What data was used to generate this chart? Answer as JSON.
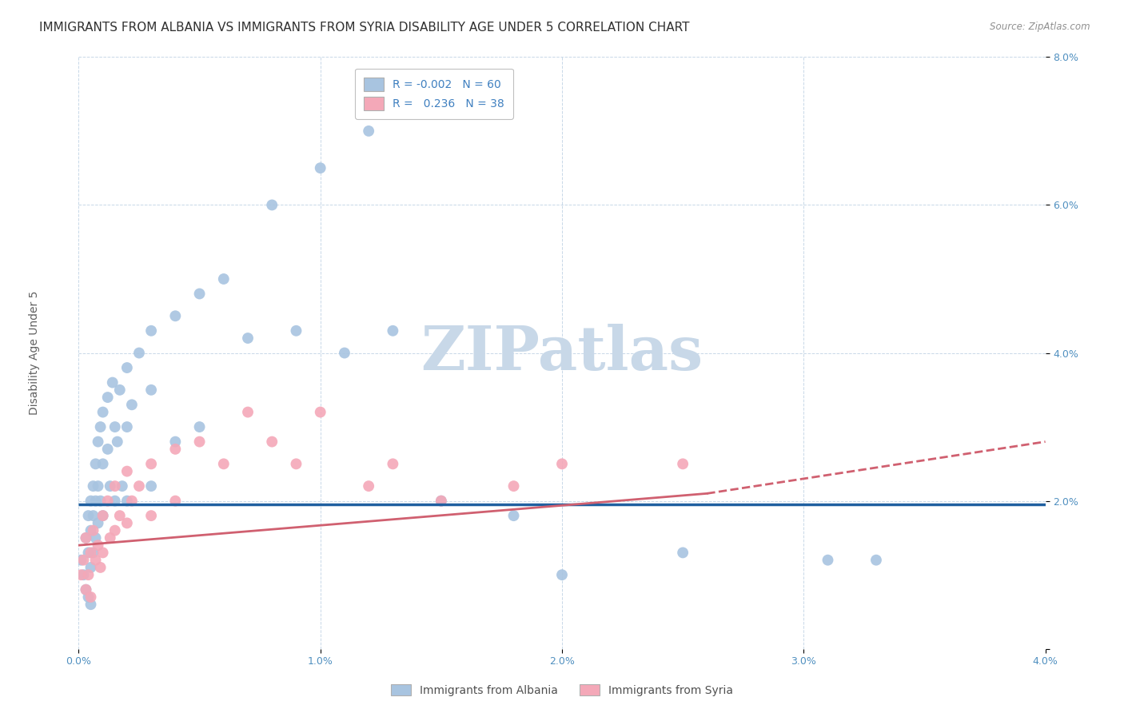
{
  "title": "IMMIGRANTS FROM ALBANIA VS IMMIGRANTS FROM SYRIA DISABILITY AGE UNDER 5 CORRELATION CHART",
  "source": "Source: ZipAtlas.com",
  "ylabel": "Disability Age Under 5",
  "xlabel_albania": "Immigrants from Albania",
  "xlabel_syria": "Immigrants from Syria",
  "xlim": [
    0.0,
    0.04
  ],
  "ylim": [
    0.0,
    0.08
  ],
  "xticks": [
    0.0,
    0.01,
    0.02,
    0.03,
    0.04
  ],
  "yticks": [
    0.0,
    0.02,
    0.04,
    0.06,
    0.08
  ],
  "xtick_labels": [
    "0.0%",
    "1.0%",
    "2.0%",
    "3.0%",
    "4.0%"
  ],
  "ytick_labels": [
    "",
    "2.0%",
    "4.0%",
    "6.0%",
    "8.0%"
  ],
  "albania_R": "-0.002",
  "albania_N": "60",
  "syria_R": "0.236",
  "syria_N": "38",
  "albania_color": "#a8c4e0",
  "syria_color": "#f4a8b8",
  "albania_line_color": "#2060a0",
  "syria_line_color": "#d06070",
  "title_fontsize": 11,
  "axis_label_fontsize": 10,
  "tick_fontsize": 9,
  "legend_fontsize": 10,
  "watermark": "ZIPatlas",
  "watermark_color": "#c8d8e8",
  "albania_line_y0": 0.0195,
  "albania_line_y1": 0.0195,
  "syria_line_x0": 0.0,
  "syria_line_x1": 0.026,
  "syria_line_x2": 0.04,
  "syria_line_y0": 0.014,
  "syria_line_y1": 0.021,
  "syria_line_y2": 0.028,
  "albania_x": [
    0.0001,
    0.0002,
    0.0003,
    0.0003,
    0.0004,
    0.0004,
    0.0004,
    0.0005,
    0.0005,
    0.0005,
    0.0005,
    0.0006,
    0.0006,
    0.0006,
    0.0007,
    0.0007,
    0.0007,
    0.0008,
    0.0008,
    0.0008,
    0.0009,
    0.0009,
    0.001,
    0.001,
    0.001,
    0.0012,
    0.0012,
    0.0013,
    0.0014,
    0.0015,
    0.0015,
    0.0016,
    0.0017,
    0.0018,
    0.002,
    0.002,
    0.002,
    0.0022,
    0.0025,
    0.003,
    0.003,
    0.003,
    0.004,
    0.004,
    0.005,
    0.005,
    0.006,
    0.007,
    0.008,
    0.009,
    0.01,
    0.011,
    0.012,
    0.013,
    0.015,
    0.018,
    0.02,
    0.025,
    0.031,
    0.033
  ],
  "albania_y": [
    0.012,
    0.01,
    0.015,
    0.008,
    0.018,
    0.013,
    0.007,
    0.02,
    0.016,
    0.011,
    0.006,
    0.022,
    0.018,
    0.013,
    0.025,
    0.02,
    0.015,
    0.028,
    0.022,
    0.017,
    0.03,
    0.02,
    0.032,
    0.025,
    0.018,
    0.034,
    0.027,
    0.022,
    0.036,
    0.03,
    0.02,
    0.028,
    0.035,
    0.022,
    0.038,
    0.03,
    0.02,
    0.033,
    0.04,
    0.043,
    0.035,
    0.022,
    0.045,
    0.028,
    0.048,
    0.03,
    0.05,
    0.042,
    0.06,
    0.043,
    0.065,
    0.04,
    0.07,
    0.043,
    0.02,
    0.018,
    0.01,
    0.013,
    0.012,
    0.012
  ],
  "syria_x": [
    0.0001,
    0.0002,
    0.0003,
    0.0003,
    0.0004,
    0.0005,
    0.0005,
    0.0006,
    0.0007,
    0.0008,
    0.0009,
    0.001,
    0.001,
    0.0012,
    0.0013,
    0.0015,
    0.0015,
    0.0017,
    0.002,
    0.002,
    0.0022,
    0.0025,
    0.003,
    0.003,
    0.004,
    0.004,
    0.005,
    0.006,
    0.007,
    0.008,
    0.009,
    0.01,
    0.012,
    0.013,
    0.015,
    0.018,
    0.02,
    0.025
  ],
  "syria_y": [
    0.01,
    0.012,
    0.008,
    0.015,
    0.01,
    0.013,
    0.007,
    0.016,
    0.012,
    0.014,
    0.011,
    0.018,
    0.013,
    0.02,
    0.015,
    0.022,
    0.016,
    0.018,
    0.024,
    0.017,
    0.02,
    0.022,
    0.025,
    0.018,
    0.027,
    0.02,
    0.028,
    0.025,
    0.032,
    0.028,
    0.025,
    0.032,
    0.022,
    0.025,
    0.02,
    0.022,
    0.025,
    0.025
  ]
}
